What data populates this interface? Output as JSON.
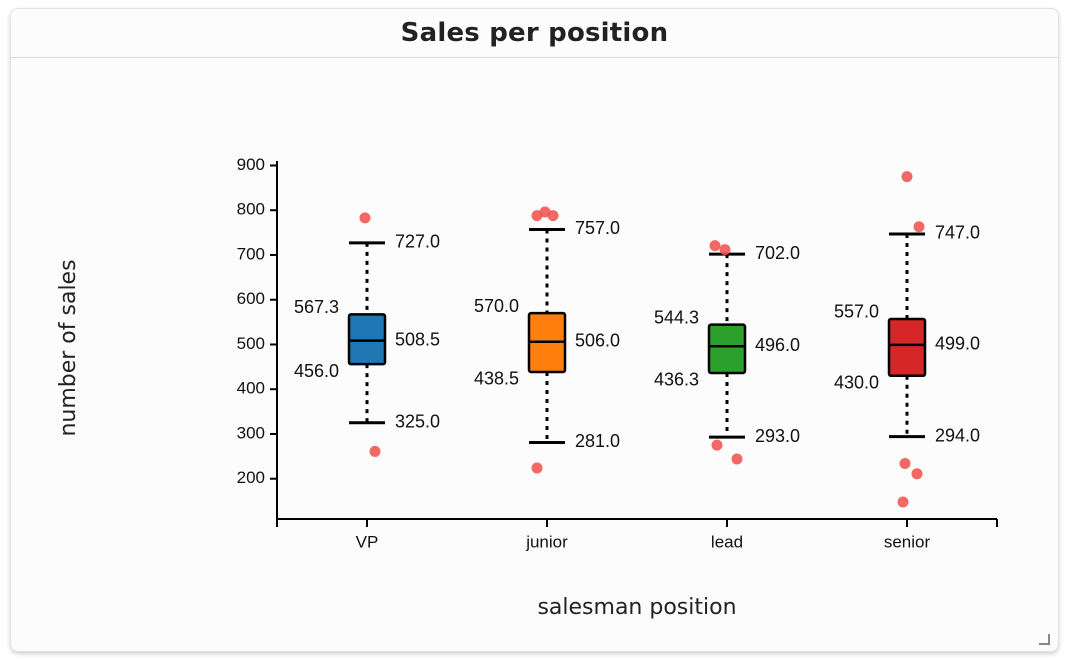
{
  "card": {
    "title": "Sales per position"
  },
  "chart_data": {
    "type": "boxplot",
    "title": "Sales per position",
    "xlabel": "salesman position",
    "ylabel": "number of sales",
    "ylim": [
      110,
      910
    ],
    "yticks": [
      200,
      300,
      400,
      500,
      600,
      700,
      800,
      900
    ],
    "categories": [
      {
        "name": "VP",
        "color": "#1f77b4",
        "whisker_high": 727.0,
        "q3": 567.3,
        "median": 508.5,
        "q1": 456.0,
        "whisker_low": 325.0,
        "labels": {
          "whisker_high": "727.0",
          "q3": "567.3",
          "median": "508.5",
          "q1": "456.0",
          "whisker_low": "325.0"
        },
        "outliers": [
          783,
          261
        ]
      },
      {
        "name": "junior",
        "color": "#ff7f0e",
        "whisker_high": 757.0,
        "q3": 570.0,
        "median": 506.0,
        "q1": 438.5,
        "whisker_low": 281.0,
        "labels": {
          "whisker_high": "757.0",
          "q3": "570.0",
          "median": "506.0",
          "q1": "438.5",
          "whisker_low": "281.0"
        },
        "outliers": [
          788,
          796,
          788,
          224
        ]
      },
      {
        "name": "lead",
        "color": "#2ca02c",
        "whisker_high": 702.0,
        "q3": 544.3,
        "median": 496.0,
        "q1": 436.3,
        "whisker_low": 293.0,
        "labels": {
          "whisker_high": "702.0",
          "q3": "544.3",
          "median": "496.0",
          "q1": "436.3",
          "whisker_low": "293.0"
        },
        "outliers": [
          721,
          712,
          275,
          244
        ]
      },
      {
        "name": "senior",
        "color": "#d62728",
        "whisker_high": 747.0,
        "q3": 557.0,
        "median": 499.0,
        "q1": 430.0,
        "whisker_low": 294.0,
        "labels": {
          "whisker_high": "747.0",
          "q3": "557.0",
          "median": "499.0",
          "q1": "430.0",
          "whisker_low": "294.0"
        },
        "outliers": [
          875,
          763,
          234,
          211,
          148
        ]
      }
    ],
    "outlier_color": "#ef5350"
  }
}
